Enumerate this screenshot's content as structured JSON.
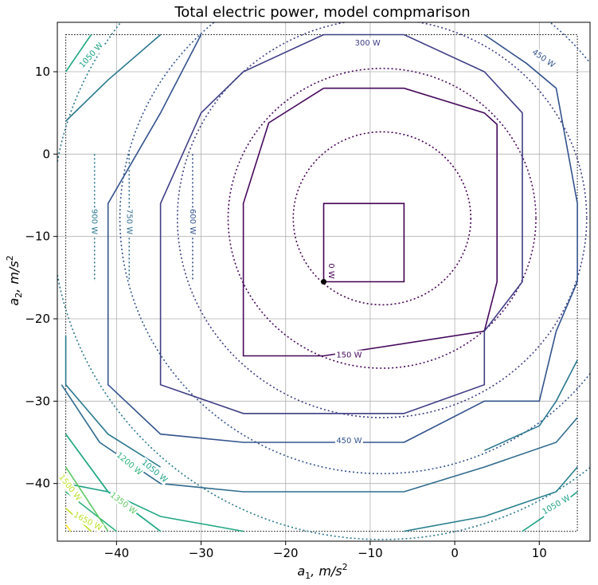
{
  "chart_data": {
    "type": "contour",
    "title": "Total electric power, model compmarison",
    "xlabel": {
      "main": "a",
      "sub": "1",
      "rest": ", m/s",
      "sup": "2"
    },
    "ylabel": {
      "main": "a",
      "sub": "2",
      "rest": ", m/s",
      "sup": "2"
    },
    "xlim": [
      -47,
      16
    ],
    "ylim": [
      -47,
      16
    ],
    "xticks": [
      -40,
      -30,
      -20,
      -10,
      0,
      10
    ],
    "yticks": [
      10,
      0,
      -10,
      -20,
      -30,
      -40
    ],
    "grid": true,
    "domain": {
      "x": [
        -46,
        14.5
      ],
      "y": [
        -45.8,
        14.5
      ]
    },
    "minimum_point": {
      "x": -15.5,
      "y": -15.5
    },
    "piecewise_contours": {
      "style": "solid",
      "center": [
        -5,
        -5
      ],
      "levels": [
        {
          "power_w": 0,
          "color": "#440154",
          "label": "0 W",
          "points": [
            [
              -15.5,
              -15.5
            ],
            [
              -15.5,
              -6
            ],
            [
              -6,
              -6
            ],
            [
              -6,
              -15.5
            ],
            [
              -15.5,
              -15.5
            ]
          ]
        },
        {
          "power_w": 150,
          "color": "#46085c",
          "label": "150 W",
          "points": [
            [
              -15.5,
              8
            ],
            [
              -6,
              8
            ],
            [
              3.5,
              5
            ],
            [
              5,
              3.6
            ],
            [
              5,
              -15.5
            ],
            [
              3.5,
              -21.5
            ],
            [
              -15.5,
              -24.5
            ],
            [
              -25,
              -24.5
            ],
            [
              -25,
              -15.5
            ],
            [
              -25,
              -6
            ],
            [
              -22,
              3.8
            ],
            [
              -15.5,
              8
            ]
          ]
        },
        {
          "power_w": 300,
          "color": "#3f3e85",
          "label": "300 W",
          "points": [
            [
              -15.5,
              14.5
            ],
            [
              -6,
              14.5
            ],
            [
              3.5,
              10
            ],
            [
              8,
              5
            ],
            [
              8,
              -6
            ],
            [
              8,
              -15.5
            ],
            [
              3.5,
              -21.5
            ],
            [
              3.5,
              -28
            ],
            [
              -6,
              -31.5
            ],
            [
              -15.5,
              -31.5
            ],
            [
              -25,
              -31.5
            ],
            [
              -34.8,
              -28
            ],
            [
              -34.8,
              -15.5
            ],
            [
              -34.8,
              -6
            ],
            [
              -30,
              5
            ],
            [
              -25,
              10
            ],
            [
              -15.5,
              14.5
            ]
          ]
        },
        {
          "power_w": 450,
          "color": "#33538d",
          "label": "450 W",
          "points": [
            [
              3.5,
              14.5
            ],
            [
              8.5,
              11
            ],
            [
              12,
              8
            ],
            [
              14.5,
              -6
            ],
            [
              14.5,
              -15.5
            ],
            [
              12,
              -21.5
            ],
            [
              10,
              -30
            ],
            [
              3.5,
              -30
            ],
            [
              -6,
              -35
            ],
            [
              -15.5,
              -35
            ],
            [
              -25,
              -35
            ],
            [
              -34.8,
              -34
            ],
            [
              -41,
              -28
            ],
            [
              -41,
              -15.5
            ],
            [
              -41,
              -6
            ],
            [
              -34.8,
              5
            ],
            [
              -30,
              14.5
            ]
          ]
        },
        {
          "power_w": 600,
          "color": "#2f6b8e",
          "label": "",
          "points": [
            [
              14.5,
              -32
            ],
            [
              12,
              -35
            ],
            [
              3.5,
              -38
            ],
            [
              -6,
              -41
            ],
            [
              -15.5,
              -41
            ],
            [
              -25,
              -41
            ],
            [
              -34.8,
              -40
            ],
            [
              -42,
              -35
            ],
            [
              -46.5,
              -28
            ]
          ]
        },
        {
          "power_w": 750,
          "color": "#277f8e",
          "label": "",
          "points": [
            [
              14.5,
              -38
            ],
            [
              12,
              -41
            ],
            [
              3.5,
              -44
            ],
            [
              -6,
              -45.8
            ]
          ]
        },
        {
          "power_w": 900,
          "color": "#22a884",
          "label": "",
          "points": [
            [
              -25,
              -45.8
            ],
            [
              -34.8,
              -44
            ],
            [
              -41,
              -41
            ],
            [
              -46,
              -34
            ]
          ]
        },
        {
          "power_w": 1050,
          "color": "#1fa187",
          "label": "1050 W",
          "points": [
            [
              -34.8,
              -45.8
            ],
            [
              -41,
              -41
            ],
            [
              -46,
              -40
            ]
          ]
        },
        {
          "power_w": 1200,
          "color": "#2db27d",
          "label": "1200 W",
          "points": [
            [
              -40,
              -45.8
            ],
            [
              -46,
              -41
            ]
          ]
        },
        {
          "power_w": 1350,
          "color": "#5ec962",
          "label": "1350 W",
          "points": [
            [
              -46,
              -43
            ]
          ]
        },
        {
          "power_w": 1050,
          "color": "#1fa187",
          "label": "1050 W",
          "points": [
            [
              14.5,
              -41
            ],
            [
              12,
              -43
            ],
            [
              8,
              -45.8
            ]
          ]
        }
      ]
    },
    "left_contours": [
      {
        "power_w": 900,
        "color": "#2a788e",
        "label": "900 W",
        "x": -42.6
      },
      {
        "power_w": 750,
        "color": "#2f6b8e",
        "label": "750 W",
        "x": -38.5
      },
      {
        "power_w": 600,
        "color": "#33538d",
        "label": "600 W",
        "x": -31
      }
    ],
    "model_contours": {
      "style": "dotted",
      "center": [
        -8.6,
        -7.8
      ],
      "radii": [
        {
          "r": 10.5,
          "color": "#440154"
        },
        {
          "r": 18.2,
          "color": "#46085c"
        },
        {
          "r": 24.2,
          "color": "#3f3e85"
        },
        {
          "r": 31,
          "color": "#33538d"
        },
        {
          "r": 39,
          "color": "#2a788e"
        }
      ]
    },
    "corner_labels": [
      {
        "label": "1050 W",
        "color": "#1fa187",
        "x": -43,
        "y": 12,
        "angle": -48
      },
      {
        "label": "450 W",
        "color": "#33538d",
        "x": 10.5,
        "y": 11.6,
        "angle": 35
      },
      {
        "label": "300 W",
        "color": "#3f3e85",
        "x": -10.3,
        "y": 13.5,
        "angle": 0
      },
      {
        "label": "0 W",
        "color": "#440154",
        "x": -14.6,
        "y": -14.2,
        "angle": 90
      },
      {
        "label": "150 W",
        "color": "#46085c",
        "x": -12.5,
        "y": -24.4,
        "angle": 0
      },
      {
        "label": "450 W",
        "color": "#33538d",
        "x": -12.5,
        "y": -34.8,
        "angle": 0
      },
      {
        "label": "1200 W",
        "color": "#2db27d",
        "x": -38.5,
        "y": -37.6,
        "angle": 40
      },
      {
        "label": "1050 W",
        "color": "#1fa187",
        "x": -35.5,
        "y": -38.5,
        "angle": 40
      },
      {
        "label": "1350 W",
        "color": "#5ec962",
        "x": -39.2,
        "y": -42.4,
        "angle": 38
      },
      {
        "label": "1500 W",
        "color": "#bddf26",
        "x": -45.5,
        "y": -40.5,
        "angle": 52
      },
      {
        "label": "1650 W",
        "color": "#bddf26",
        "x": -43.4,
        "y": -44.6,
        "angle": 28
      },
      {
        "label": "1050 W",
        "color": "#1fa187",
        "x": 12,
        "y": -42.6,
        "angle": -30
      }
    ]
  }
}
